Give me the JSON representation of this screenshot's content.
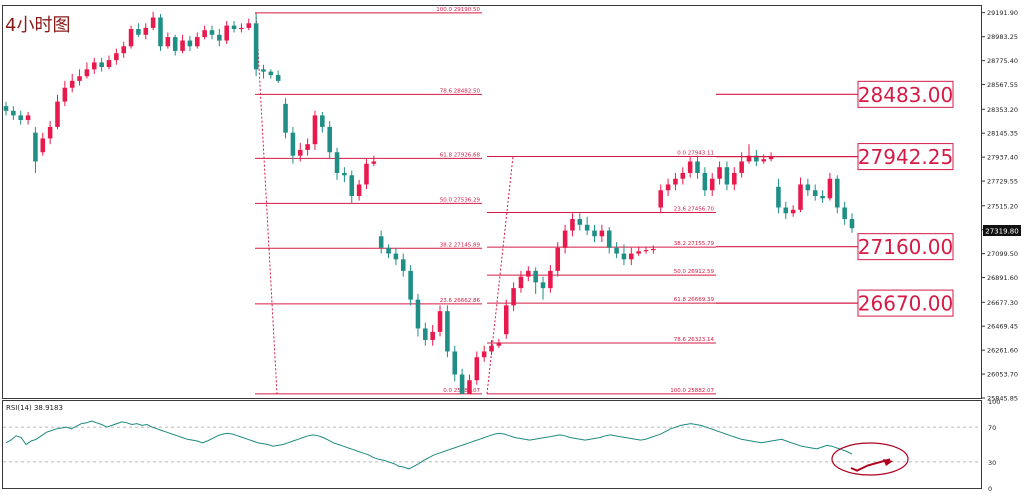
{
  "title": "4小时图",
  "rsi_label": "RSI(14) 38.9183",
  "colors": {
    "bull": "#e8194c",
    "bear": "#1f8f86",
    "fib": "#d51a45",
    "rsi": "#1e8a82",
    "price_tag": "#111111"
  },
  "current_price": "27319.80",
  "big_labels": [
    {
      "text": "28483.00",
      "price": 28483
    },
    {
      "text": "27942.25",
      "price": 27942.25
    },
    {
      "text": "27160.00",
      "price": 27160
    },
    {
      "text": "26670.00",
      "price": 26670
    }
  ],
  "chart_data": [
    {
      "type": "candlestick",
      "y_axis": {
        "range": [
          25845.8,
          29250
        ],
        "ticks": [
          "29191.90",
          "28983.25",
          "28775.40",
          "28567.55",
          "28353.20",
          "28145.35",
          "27937.40",
          "27729.55",
          "27515.20",
          "27307.35",
          "27099.50",
          "26891.60",
          "26677.30",
          "26469.45",
          "26261.60",
          "26053.70",
          "25845.85"
        ]
      },
      "fib_left": [
        {
          "level": "100.0",
          "price": "29190.50"
        },
        {
          "level": "78.6",
          "price": "28482.50"
        },
        {
          "level": "61.8",
          "price": "27926.68"
        },
        {
          "level": "50.0",
          "price": "27536.29"
        },
        {
          "level": "38.2",
          "price": "27145.89"
        },
        {
          "level": "23.6",
          "price": "26662.86"
        },
        {
          "level": "0.0",
          "price": "25882.07"
        }
      ],
      "fib_right": [
        {
          "level": "0.0",
          "price": "27943.11"
        },
        {
          "level": "23.6",
          "price": "27456.70"
        },
        {
          "level": "38.2",
          "price": "27155.79"
        },
        {
          "level": "50.0",
          "price": "26912.59"
        },
        {
          "level": "61.8",
          "price": "26669.39"
        },
        {
          "level": "78.6",
          "price": "26323.14"
        },
        {
          "level": "100.0",
          "price": "25882.07"
        }
      ],
      "candles": [
        [
          28380,
          28340,
          28420,
          28300
        ],
        [
          28340,
          28300,
          28380,
          28260
        ],
        [
          28300,
          28260,
          28340,
          28220
        ],
        [
          28260,
          28300,
          28330,
          28220
        ],
        [
          28150,
          27900,
          28200,
          27800
        ],
        [
          27980,
          28100,
          28150,
          27950
        ],
        [
          28100,
          28200,
          28250,
          28050
        ],
        [
          28200,
          28420,
          28480,
          28180
        ],
        [
          28420,
          28540,
          28600,
          28380
        ],
        [
          28540,
          28600,
          28660,
          28500
        ],
        [
          28600,
          28640,
          28700,
          28560
        ],
        [
          28640,
          28700,
          28760,
          28620
        ],
        [
          28700,
          28760,
          28800,
          28660
        ],
        [
          28760,
          28720,
          28800,
          28680
        ],
        [
          28720,
          28780,
          28820,
          28700
        ],
        [
          28780,
          28840,
          28880,
          28740
        ],
        [
          28840,
          28900,
          28940,
          28800
        ],
        [
          28900,
          29050,
          29080,
          28880
        ],
        [
          29050,
          29000,
          29100,
          28980
        ],
        [
          29000,
          29060,
          29100,
          28960
        ],
        [
          29060,
          29150,
          29200,
          29040
        ],
        [
          29150,
          28900,
          29180,
          28860
        ],
        [
          28900,
          28980,
          29020,
          28880
        ],
        [
          28980,
          28860,
          29000,
          28820
        ],
        [
          28860,
          28950,
          29000,
          28840
        ],
        [
          28950,
          28900,
          28990,
          28860
        ],
        [
          28900,
          28980,
          29020,
          28880
        ],
        [
          28980,
          29040,
          29080,
          28960
        ],
        [
          29040,
          29000,
          29080,
          28960
        ],
        [
          29000,
          28950,
          29050,
          28900
        ],
        [
          28950,
          29080,
          29120,
          28920
        ],
        [
          29080,
          29050,
          29120,
          29020
        ],
        [
          29050,
          29060,
          29100,
          29020
        ],
        [
          29060,
          29100,
          29140,
          29040
        ],
        [
          29100,
          28700,
          29180,
          28640
        ],
        [
          28700,
          28680,
          28740,
          28620
        ],
        [
          28680,
          28650,
          28700,
          28620
        ],
        [
          28650,
          28600,
          28690,
          28580
        ],
        [
          28400,
          28150,
          28450,
          28100
        ],
        [
          28150,
          27950,
          28200,
          27880
        ],
        [
          27950,
          28000,
          28060,
          27900
        ],
        [
          28000,
          28050,
          28100,
          27950
        ],
        [
          28050,
          28300,
          28340,
          28000
        ],
        [
          28300,
          28200,
          28330,
          28150
        ],
        [
          28200,
          27980,
          28250,
          27920
        ],
        [
          27980,
          27800,
          28020,
          27740
        ],
        [
          27800,
          27780,
          27850,
          27720
        ],
        [
          27780,
          27600,
          27820,
          27540
        ],
        [
          27600,
          27700,
          27740,
          27560
        ],
        [
          27700,
          27880,
          27920,
          27660
        ],
        [
          27880,
          27900,
          27950,
          27860
        ],
        [
          27250,
          27150,
          27300,
          27100
        ],
        [
          27150,
          27100,
          27180,
          27060
        ],
        [
          27100,
          27050,
          27150,
          27000
        ],
        [
          27050,
          26950,
          27100,
          26900
        ],
        [
          26950,
          26700,
          27000,
          26650
        ],
        [
          26700,
          26450,
          26750,
          26380
        ],
        [
          26450,
          26350,
          26500,
          26300
        ],
        [
          26350,
          26420,
          26480,
          26300
        ],
        [
          26420,
          26600,
          26650,
          26380
        ],
        [
          26600,
          26250,
          26650,
          26200
        ],
        [
          26250,
          26050,
          26300,
          25990
        ],
        [
          26050,
          25882,
          26100,
          25882
        ],
        [
          25882,
          26000,
          26050,
          25882
        ],
        [
          26000,
          26200,
          26250,
          25960
        ],
        [
          26200,
          26250,
          26300,
          26160
        ],
        [
          26250,
          26300,
          26350,
          26220
        ],
        [
          26300,
          26320,
          26360,
          26280
        ],
        [
          26400,
          26650,
          26700,
          26360
        ],
        [
          26650,
          26800,
          26850,
          26600
        ],
        [
          26800,
          26900,
          26950,
          26760
        ],
        [
          26900,
          26950,
          26990,
          26860
        ],
        [
          26950,
          26850,
          26980,
          26750
        ],
        [
          26850,
          26800,
          26900,
          26700
        ],
        [
          26800,
          26950,
          27000,
          26760
        ],
        [
          26950,
          27150,
          27200,
          26900
        ],
        [
          27150,
          27300,
          27350,
          27100
        ],
        [
          27300,
          27400,
          27450,
          27250
        ],
        [
          27400,
          27350,
          27450,
          27300
        ],
        [
          27350,
          27300,
          27420,
          27260
        ],
        [
          27300,
          27250,
          27350,
          27200
        ],
        [
          27250,
          27300,
          27350,
          27200
        ],
        [
          27300,
          27150,
          27330,
          27100
        ],
        [
          27150,
          27100,
          27200,
          27060
        ],
        [
          27100,
          27050,
          27180,
          27000
        ],
        [
          27050,
          27100,
          27150,
          27000
        ],
        [
          27100,
          27120,
          27160,
          27080
        ],
        [
          27120,
          27130,
          27160,
          27100
        ],
        [
          27130,
          27140,
          27170,
          27100
        ],
        [
          27500,
          27650,
          27700,
          27450
        ],
        [
          27650,
          27700,
          27750,
          27600
        ],
        [
          27700,
          27750,
          27800,
          27650
        ],
        [
          27750,
          27800,
          27850,
          27700
        ],
        [
          27800,
          27900,
          27940,
          27760
        ],
        [
          27900,
          27800,
          27950,
          27750
        ],
        [
          27800,
          27650,
          27850,
          27600
        ],
        [
          27650,
          27750,
          27800,
          27600
        ],
        [
          27750,
          27850,
          27900,
          27700
        ],
        [
          27850,
          27700,
          27900,
          27650
        ],
        [
          27700,
          27800,
          27850,
          27650
        ],
        [
          27800,
          27900,
          27980,
          27760
        ],
        [
          27900,
          27950,
          28050,
          27880
        ],
        [
          27950,
          27900,
          28000,
          27860
        ],
        [
          27900,
          27920,
          27960,
          27880
        ],
        [
          27920,
          27940,
          27980,
          27900
        ],
        [
          27680,
          27500,
          27750,
          27450
        ],
        [
          27500,
          27450,
          27550,
          27400
        ],
        [
          27450,
          27480,
          27520,
          27420
        ],
        [
          27480,
          27700,
          27760,
          27460
        ],
        [
          27700,
          27650,
          27750,
          27600
        ],
        [
          27650,
          27600,
          27700,
          27560
        ],
        [
          27600,
          27580,
          27650,
          27540
        ],
        [
          27580,
          27750,
          27800,
          27560
        ],
        [
          27750,
          27500,
          27780,
          27450
        ],
        [
          27500,
          27400,
          27550,
          27350
        ],
        [
          27400,
          27320,
          27450,
          27280
        ]
      ]
    },
    {
      "type": "line",
      "name": "RSI(14)",
      "y_axis": {
        "range": [
          0,
          100
        ],
        "ticks": [
          "100",
          "70",
          "30",
          "0"
        ]
      },
      "levels": [
        70,
        30
      ],
      "values": [
        52,
        55,
        60,
        58,
        50,
        54,
        56,
        60,
        64,
        66,
        68,
        69,
        70,
        68,
        71,
        74,
        75,
        77,
        75,
        73,
        70,
        72,
        74,
        76,
        75,
        73,
        74,
        72,
        73,
        70,
        68,
        66,
        64,
        62,
        60,
        58,
        56,
        55,
        54,
        52,
        54,
        57,
        60,
        62,
        63,
        62,
        60,
        58,
        56,
        54,
        52,
        51,
        50,
        48,
        49,
        50,
        52,
        54,
        56,
        58,
        60,
        61,
        60,
        58,
        55,
        52,
        50,
        48,
        46,
        44,
        42,
        40,
        38,
        35,
        33,
        32,
        30,
        28,
        25,
        24,
        22,
        25,
        28,
        32,
        35,
        38,
        40,
        42,
        44,
        46,
        48,
        50,
        52,
        54,
        56,
        58,
        60,
        62,
        63,
        62,
        60,
        58,
        57,
        56,
        55,
        56,
        57,
        58,
        59,
        60,
        61,
        60,
        58,
        57,
        56,
        55,
        56,
        57,
        58,
        60,
        61,
        60,
        59,
        58,
        57,
        56,
        55,
        56,
        58,
        60,
        62,
        65,
        68,
        70,
        72,
        73,
        74,
        73,
        72,
        70,
        68,
        66,
        64,
        62,
        60,
        58,
        56,
        55,
        54,
        53,
        52,
        53,
        54,
        55,
        56,
        54,
        52,
        50,
        48,
        47,
        46,
        45,
        47,
        49,
        48,
        46,
        44,
        42,
        39
      ],
      "annotation_arrow": [
        [
          44,
          23
        ],
        [
          41,
          20
        ],
        [
          36,
          26
        ],
        [
          40,
          33
        ]
      ]
    }
  ]
}
